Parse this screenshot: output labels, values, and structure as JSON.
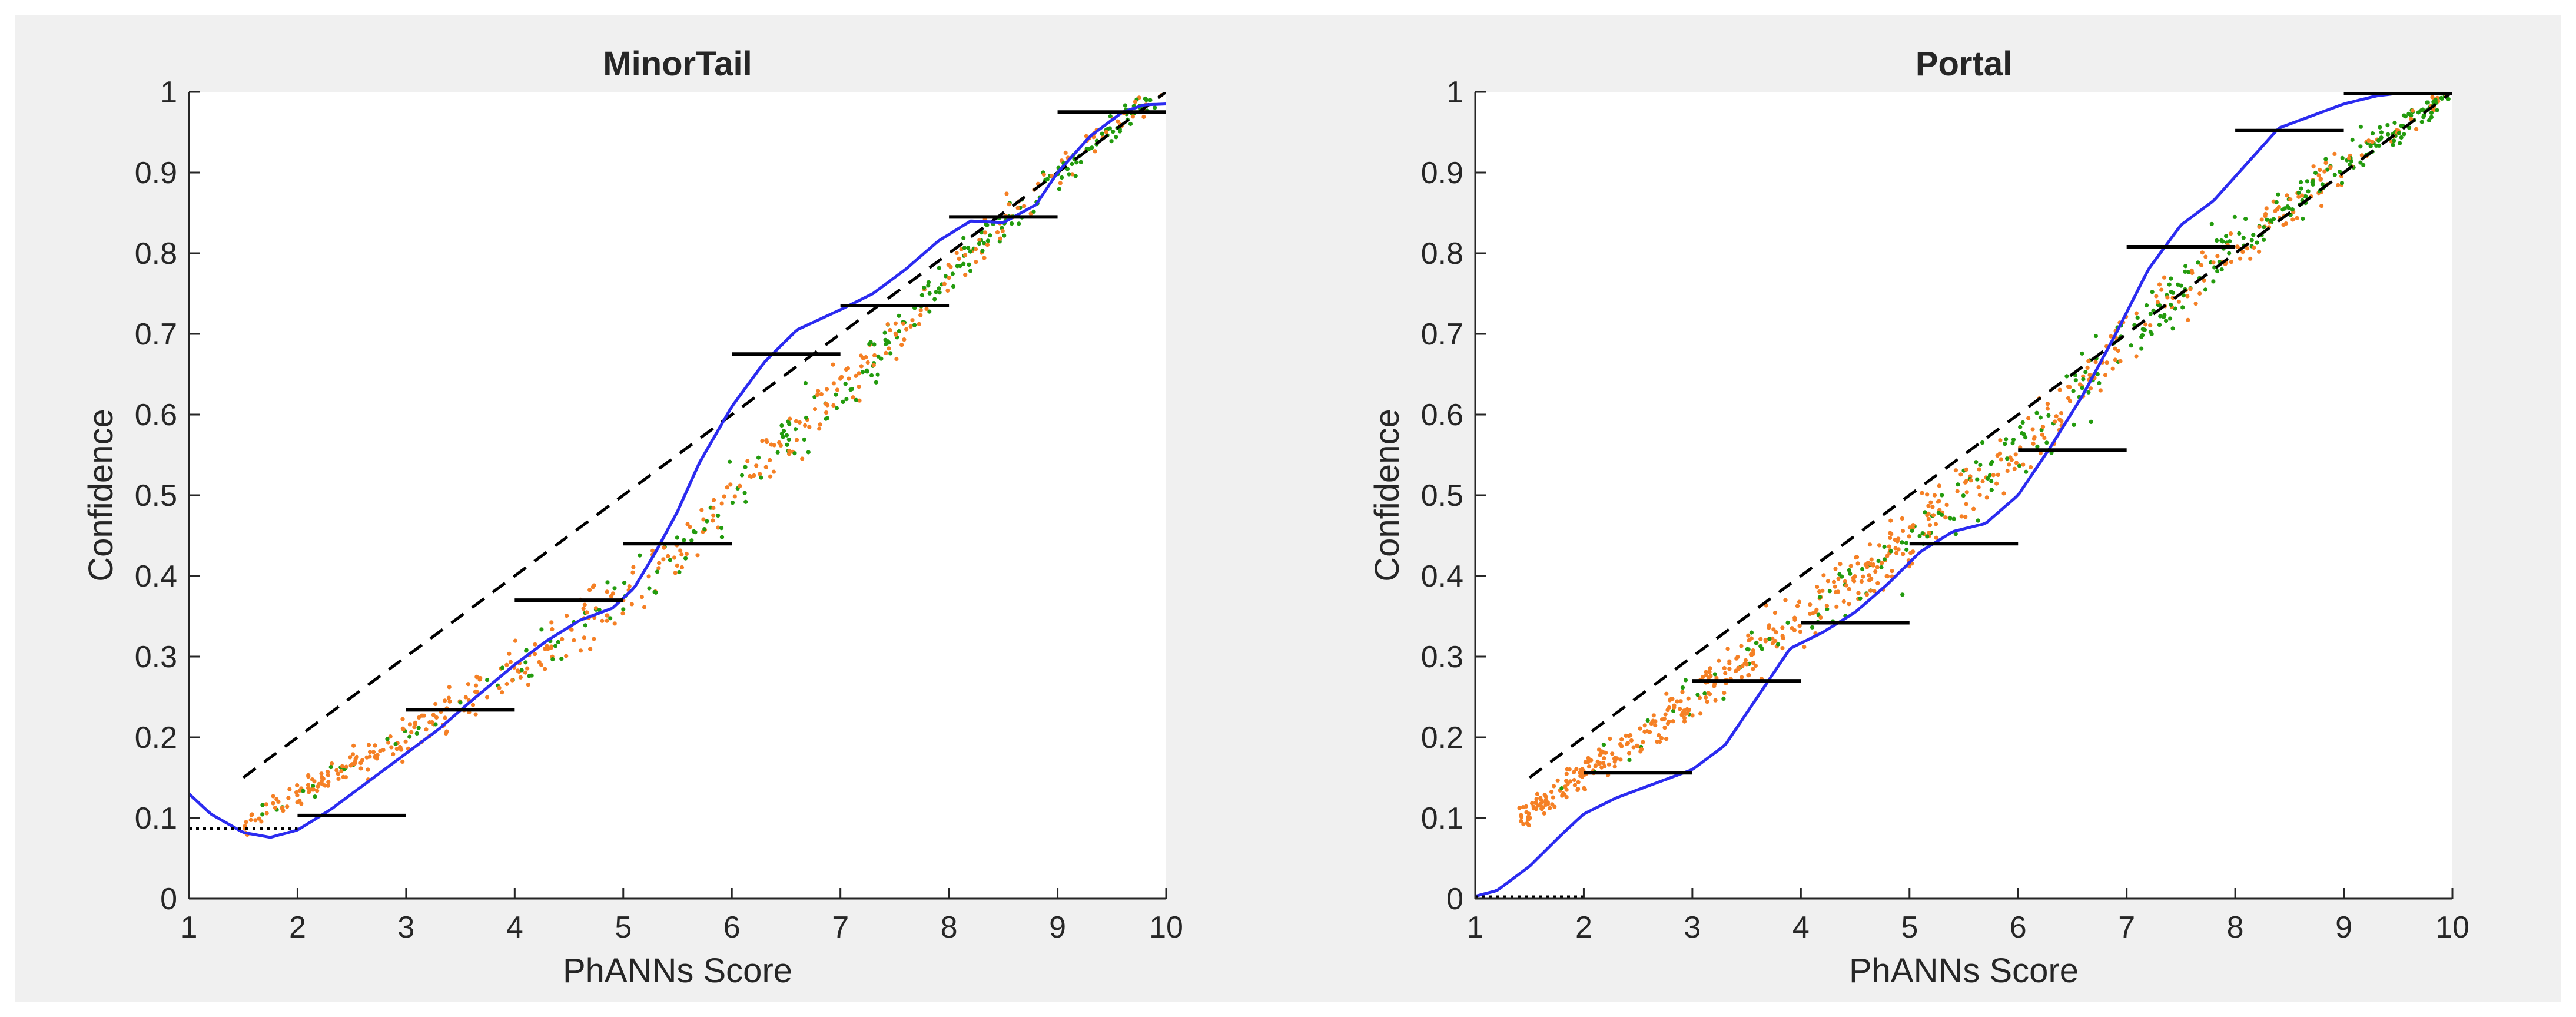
{
  "figure": {
    "background": "#f0f0f0"
  },
  "colors": {
    "curve": "#2b2bf0",
    "dashed": "#000000",
    "bins": "#000000",
    "points_orange": "#f58025",
    "points_green": "#239b0e"
  },
  "chart_data": [
    {
      "type": "line",
      "title": "MinorTail",
      "xlabel": "PhANNs Score",
      "ylabel": "Confidence",
      "xlim": [
        1,
        10
      ],
      "ylim": [
        0,
        1
      ],
      "xticks": [
        "1",
        "2",
        "3",
        "4",
        "5",
        "6",
        "7",
        "8",
        "9",
        "10"
      ],
      "yticks": [
        "0",
        "0.1",
        "0.2",
        "0.3",
        "0.4",
        "0.5",
        "0.6",
        "0.7",
        "0.8",
        "0.9",
        "1"
      ],
      "grid": false,
      "dashed_line": {
        "x": [
          1.5,
          10
        ],
        "y": [
          0.15,
          1.0
        ]
      },
      "dotted_line": {
        "x": [
          1,
          2
        ],
        "y": [
          0.085,
          0.085
        ]
      },
      "bins": [
        {
          "x": [
            2,
            3
          ],
          "y": 0.103
        },
        {
          "x": [
            3,
            4
          ],
          "y": 0.234
        },
        {
          "x": [
            4,
            5
          ],
          "y": 0.37
        },
        {
          "x": [
            5,
            6
          ],
          "y": 0.44
        },
        {
          "x": [
            6,
            7
          ],
          "y": 0.675
        },
        {
          "x": [
            7,
            8
          ],
          "y": 0.735
        },
        {
          "x": [
            8,
            9
          ],
          "y": 0.845
        },
        {
          "x": [
            9,
            10
          ],
          "y": 0.975
        }
      ],
      "curve": {
        "x": [
          1.0,
          1.2,
          1.5,
          1.75,
          2.0,
          2.3,
          2.6,
          3.0,
          3.3,
          3.6,
          4.0,
          4.3,
          4.6,
          4.9,
          5.1,
          5.3,
          5.5,
          5.7,
          6.0,
          6.3,
          6.6,
          7.0,
          7.3,
          7.6,
          7.9,
          8.2,
          8.5,
          8.8,
          9.0,
          9.3,
          9.6,
          9.8,
          10.0
        ],
        "y": [
          0.13,
          0.105,
          0.082,
          0.076,
          0.085,
          0.11,
          0.14,
          0.18,
          0.21,
          0.245,
          0.29,
          0.32,
          0.345,
          0.36,
          0.385,
          0.43,
          0.48,
          0.54,
          0.61,
          0.665,
          0.705,
          0.73,
          0.75,
          0.78,
          0.815,
          0.84,
          0.838,
          0.86,
          0.9,
          0.945,
          0.975,
          0.984,
          0.985
        ]
      },
      "scatter_trend": {
        "x": [
          1.5,
          2.0,
          2.5,
          3.0,
          3.5,
          4.0,
          4.5,
          5.0,
          5.5,
          6.0,
          6.5,
          7.0,
          7.5,
          8.0,
          8.5,
          9.0,
          9.5,
          10.0
        ],
        "y": [
          0.09,
          0.13,
          0.165,
          0.2,
          0.24,
          0.28,
          0.33,
          0.375,
          0.435,
          0.5,
          0.565,
          0.63,
          0.7,
          0.775,
          0.84,
          0.9,
          0.955,
          1.0
        ]
      },
      "scatter_x_range": [
        1.5,
        10
      ],
      "scatter_spread": 0.018,
      "scatter_count": 650
    },
    {
      "type": "line",
      "title": "Portal",
      "xlabel": "PhANNs Score",
      "ylabel": "Confidence",
      "xlim": [
        1,
        10
      ],
      "ylim": [
        0,
        1
      ],
      "xticks": [
        "1",
        "2",
        "3",
        "4",
        "5",
        "6",
        "7",
        "8",
        "9",
        "10"
      ],
      "yticks": [
        "0",
        "0.1",
        "0.2",
        "0.3",
        "0.4",
        "0.5",
        "0.6",
        "0.7",
        "0.8",
        "0.9",
        "1"
      ],
      "grid": false,
      "dashed_line": {
        "x": [
          1.5,
          10
        ],
        "y": [
          0.15,
          1.0
        ]
      },
      "dotted_line": {
        "x": [
          1,
          2
        ],
        "y": [
          0.0,
          0.0
        ]
      },
      "bins": [
        {
          "x": [
            2,
            3
          ],
          "y": 0.156
        },
        {
          "x": [
            3,
            4
          ],
          "y": 0.27
        },
        {
          "x": [
            4,
            5
          ],
          "y": 0.342
        },
        {
          "x": [
            5,
            6
          ],
          "y": 0.44
        },
        {
          "x": [
            6,
            7
          ],
          "y": 0.556
        },
        {
          "x": [
            7,
            8
          ],
          "y": 0.808
        },
        {
          "x": [
            8,
            9
          ],
          "y": 0.952
        },
        {
          "x": [
            9,
            10
          ],
          "y": 0.998
        }
      ],
      "curve": {
        "x": [
          1.0,
          1.2,
          1.5,
          1.8,
          2.0,
          2.3,
          2.6,
          3.0,
          3.3,
          3.6,
          3.9,
          4.2,
          4.5,
          4.8,
          5.1,
          5.4,
          5.7,
          6.0,
          6.3,
          6.6,
          6.9,
          7.2,
          7.5,
          7.8,
          8.1,
          8.4,
          8.7,
          9.0,
          9.3,
          9.6,
          10.0
        ],
        "y": [
          0.003,
          0.01,
          0.04,
          0.08,
          0.105,
          0.125,
          0.14,
          0.16,
          0.19,
          0.25,
          0.31,
          0.33,
          0.355,
          0.39,
          0.43,
          0.455,
          0.465,
          0.5,
          0.56,
          0.625,
          0.7,
          0.78,
          0.835,
          0.865,
          0.91,
          0.955,
          0.97,
          0.985,
          0.995,
          1.0,
          1.0
        ]
      },
      "scatter_trend": {
        "x": [
          1.4,
          2.0,
          2.5,
          3.0,
          3.5,
          4.0,
          4.5,
          5.0,
          5.5,
          6.0,
          6.5,
          7.0,
          7.5,
          8.0,
          8.5,
          9.0,
          9.5,
          10.0
        ],
        "y": [
          0.1,
          0.155,
          0.2,
          0.25,
          0.3,
          0.345,
          0.395,
          0.445,
          0.5,
          0.56,
          0.625,
          0.695,
          0.755,
          0.81,
          0.86,
          0.91,
          0.955,
          1.0
        ]
      },
      "scatter_x_range": [
        1.4,
        10
      ],
      "scatter_spread": 0.02,
      "scatter_count": 900
    }
  ]
}
